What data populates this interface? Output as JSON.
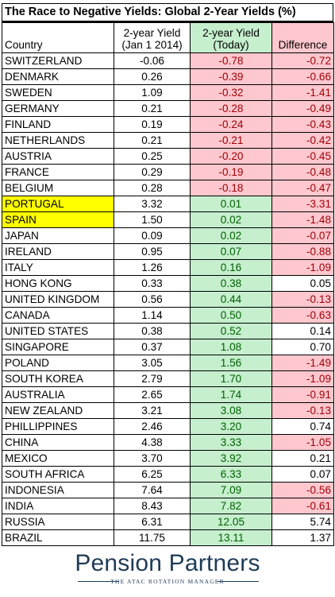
{
  "chart_data": {
    "type": "table",
    "title": "The Race to Negative Yields: Global 2-Year Yields (%)",
    "columns": {
      "country": "Country",
      "yield_2014_line1": "2-year Yield",
      "yield_2014_line2": "(Jan 1 2014)",
      "yield_today_line1": "2-year Yield",
      "yield_today_line2": "(Today)",
      "difference": "Difference"
    },
    "rows": [
      {
        "country": "SWITZERLAND",
        "jan2014": "-0.06",
        "today": "-0.78",
        "diff": "-0.72"
      },
      {
        "country": "DENMARK",
        "jan2014": "0.26",
        "today": "-0.39",
        "diff": "-0.66"
      },
      {
        "country": "SWEDEN",
        "jan2014": "1.09",
        "today": "-0.32",
        "diff": "-1.41"
      },
      {
        "country": "GERMANY",
        "jan2014": "0.21",
        "today": "-0.28",
        "diff": "-0.49"
      },
      {
        "country": "FINLAND",
        "jan2014": "0.19",
        "today": "-0.24",
        "diff": "-0.43"
      },
      {
        "country": "NETHERLANDS",
        "jan2014": "0.21",
        "today": "-0.21",
        "diff": "-0.42"
      },
      {
        "country": "AUSTRIA",
        "jan2014": "0.25",
        "today": "-0.20",
        "diff": "-0.45"
      },
      {
        "country": "FRANCE",
        "jan2014": "0.29",
        "today": "-0.19",
        "diff": "-0.48"
      },
      {
        "country": "BELGIUM",
        "jan2014": "0.28",
        "today": "-0.18",
        "diff": "-0.47"
      },
      {
        "country": "PORTUGAL",
        "jan2014": "3.32",
        "today": "0.01",
        "diff": "-3.31",
        "highlight": true
      },
      {
        "country": "SPAIN",
        "jan2014": "1.50",
        "today": "0.02",
        "diff": "-1.48",
        "highlight": true
      },
      {
        "country": "JAPAN",
        "jan2014": "0.09",
        "today": "0.02",
        "diff": "-0.07"
      },
      {
        "country": "IRELAND",
        "jan2014": "0.95",
        "today": "0.07",
        "diff": "-0.88"
      },
      {
        "country": "ITALY",
        "jan2014": "1.26",
        "today": "0.16",
        "diff": "-1.09"
      },
      {
        "country": "HONG KONG",
        "jan2014": "0.33",
        "today": "0.38",
        "diff": "0.05"
      },
      {
        "country": "UNITED KINGDOM",
        "jan2014": "0.56",
        "today": "0.44",
        "diff": "-0.13"
      },
      {
        "country": "CANADA",
        "jan2014": "1.14",
        "today": "0.50",
        "diff": "-0.63"
      },
      {
        "country": "UNITED STATES",
        "jan2014": "0.38",
        "today": "0.52",
        "diff": "0.14"
      },
      {
        "country": "SINGAPORE",
        "jan2014": "0.37",
        "today": "1.08",
        "diff": "0.70"
      },
      {
        "country": "POLAND",
        "jan2014": "3.05",
        "today": "1.56",
        "diff": "-1.49"
      },
      {
        "country": "SOUTH KOREA",
        "jan2014": "2.79",
        "today": "1.70",
        "diff": "-1.09"
      },
      {
        "country": "AUSTRALIA",
        "jan2014": "2.65",
        "today": "1.74",
        "diff": "-0.91"
      },
      {
        "country": "NEW ZEALAND",
        "jan2014": "3.21",
        "today": "3.08",
        "diff": "-0.13"
      },
      {
        "country": "PHILLIPPINES",
        "jan2014": "2.46",
        "today": "3.20",
        "diff": "0.74"
      },
      {
        "country": "CHINA",
        "jan2014": "4.38",
        "today": "3.33",
        "diff": "-1.05"
      },
      {
        "country": "MEXICO",
        "jan2014": "3.70",
        "today": "3.92",
        "diff": "0.21"
      },
      {
        "country": "SOUTH AFRICA",
        "jan2014": "6.25",
        "today": "6.33",
        "diff": "0.07"
      },
      {
        "country": "INDONESIA",
        "jan2014": "7.64",
        "today": "7.09",
        "diff": "-0.56"
      },
      {
        "country": "INDIA",
        "jan2014": "8.43",
        "today": "7.82",
        "diff": "-0.61"
      },
      {
        "country": "RUSSIA",
        "jan2014": "6.31",
        "today": "12.05",
        "diff": "5.74"
      },
      {
        "country": "BRAZIL",
        "jan2014": "11.75",
        "today": "13.11",
        "diff": "1.37"
      }
    ]
  },
  "colors": {
    "negative_fill": "#ffc7ce",
    "negative_text": "#9c0006",
    "positive_fill": "#c6efce",
    "positive_text": "#006100",
    "highlight_fill": "#ffff00",
    "brand": "#1f3b57"
  },
  "logo": {
    "brand_name": "Pension Partners",
    "tagline": "THE ATAC ROTATION MANAGER"
  }
}
